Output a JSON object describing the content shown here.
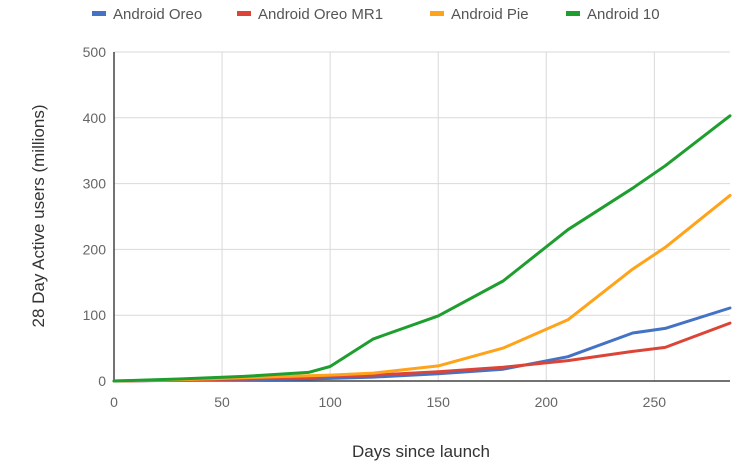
{
  "chart_data": {
    "type": "line",
    "xlabel": "Days since launch",
    "ylabel": "28 Day Active users (millions)",
    "xlim": [
      0,
      285
    ],
    "ylim": [
      0,
      500
    ],
    "x_ticks": [
      0,
      50,
      100,
      150,
      200,
      250
    ],
    "y_ticks": [
      0,
      100,
      200,
      300,
      400,
      500
    ],
    "grid": true,
    "legend_position": "top",
    "series": [
      {
        "name": "Android Oreo",
        "color": "#4472C4",
        "points": [
          [
            0,
            0
          ],
          [
            30,
            1
          ],
          [
            60,
            2
          ],
          [
            90,
            3
          ],
          [
            100,
            4
          ],
          [
            120,
            6
          ],
          [
            150,
            11
          ],
          [
            180,
            18
          ],
          [
            210,
            37
          ],
          [
            240,
            73
          ],
          [
            255,
            80
          ],
          [
            285,
            111
          ]
        ]
      },
      {
        "name": "Android Oreo MR1",
        "color": "#DB4437",
        "points": [
          [
            0,
            0
          ],
          [
            30,
            1
          ],
          [
            60,
            3
          ],
          [
            90,
            5
          ],
          [
            100,
            7
          ],
          [
            120,
            9
          ],
          [
            150,
            14
          ],
          [
            180,
            21
          ],
          [
            210,
            31
          ],
          [
            240,
            45
          ],
          [
            255,
            51
          ],
          [
            285,
            88
          ]
        ]
      },
      {
        "name": "Android Pie",
        "color": "#FFA31A",
        "points": [
          [
            0,
            0
          ],
          [
            30,
            2
          ],
          [
            60,
            5
          ],
          [
            90,
            8
          ],
          [
            100,
            9
          ],
          [
            120,
            12
          ],
          [
            150,
            23
          ],
          [
            180,
            50
          ],
          [
            210,
            93
          ],
          [
            240,
            170
          ],
          [
            255,
            203
          ],
          [
            285,
            282
          ]
        ]
      },
      {
        "name": "Android 10",
        "color": "#1E9E2E",
        "points": [
          [
            0,
            0
          ],
          [
            30,
            3
          ],
          [
            60,
            7
          ],
          [
            90,
            13
          ],
          [
            100,
            22
          ],
          [
            120,
            64
          ],
          [
            150,
            99
          ],
          [
            180,
            152
          ],
          [
            210,
            230
          ],
          [
            240,
            293
          ],
          [
            255,
            327
          ],
          [
            285,
            403
          ]
        ]
      }
    ]
  }
}
